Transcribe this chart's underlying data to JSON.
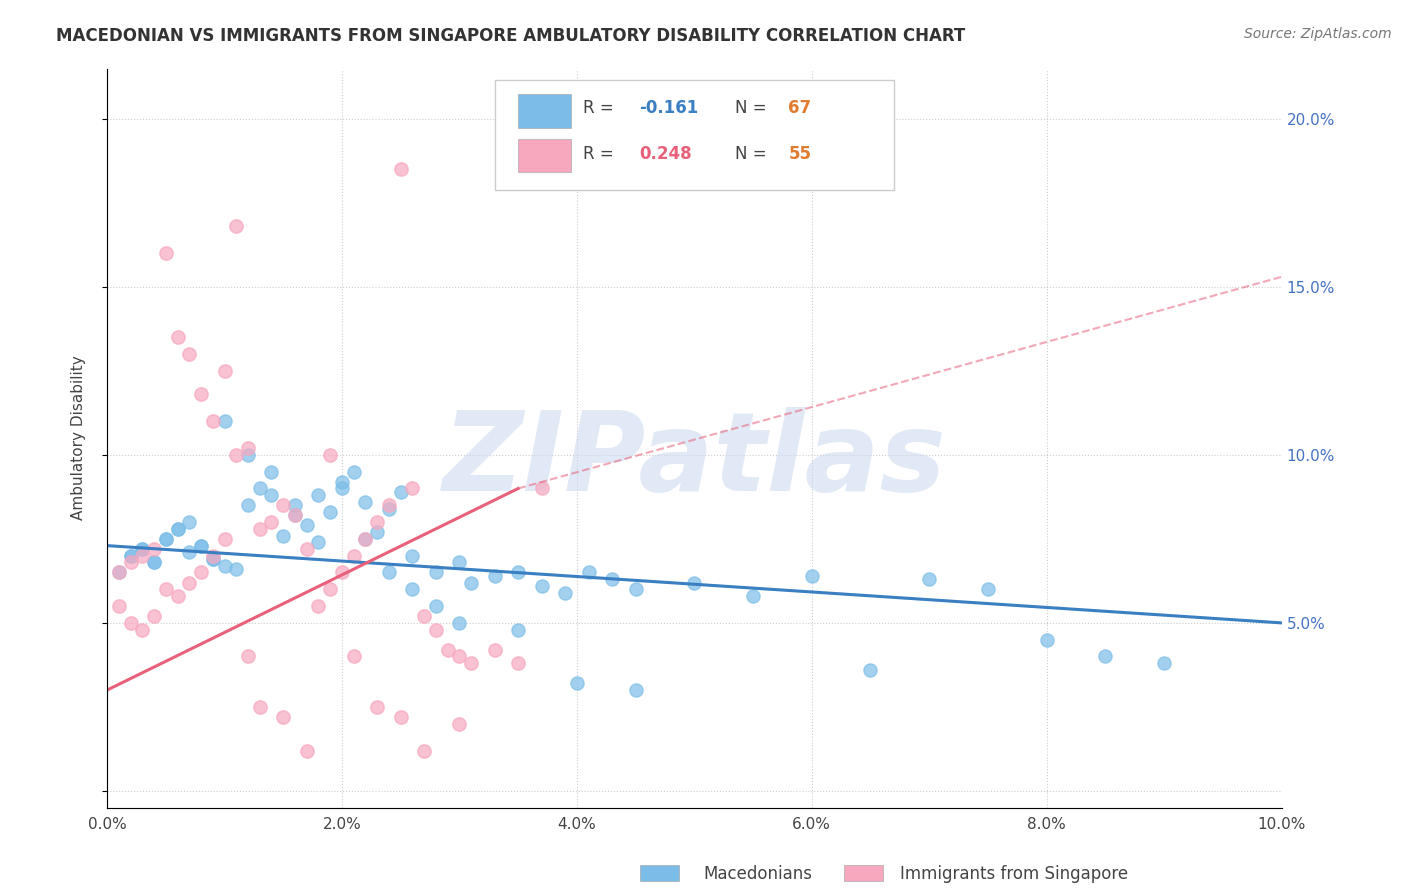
{
  "title": "MACEDONIAN VS IMMIGRANTS FROM SINGAPORE AMBULATORY DISABILITY CORRELATION CHART",
  "source": "Source: ZipAtlas.com",
  "ylabel": "Ambulatory Disability",
  "xlim": [
    0.0,
    0.1
  ],
  "ylim": [
    -0.005,
    0.215
  ],
  "xtick_vals": [
    0.0,
    0.02,
    0.04,
    0.06,
    0.08,
    0.1
  ],
  "ytick_vals": [
    0.0,
    0.05,
    0.1,
    0.15,
    0.2
  ],
  "ytick_labels": [
    "",
    "5.0%",
    "10.0%",
    "15.0%",
    "20.0%"
  ],
  "xtick_labels": [
    "0.0%",
    "2.0%",
    "4.0%",
    "6.0%",
    "8.0%",
    "10.0%"
  ],
  "mac_color": "#7bbde8",
  "sing_color": "#f7a8bf",
  "mac_line_color": "#3a7fc1",
  "sing_line_color": "#e8607a",
  "legend_label_mac": "Macedonians",
  "legend_label_sing": "Immigrants from Singapore",
  "watermark": "ZIPatlas",
  "R_mac": "-0.161",
  "N_mac": "67",
  "R_sing": "0.248",
  "N_sing": "55",
  "r_color": "#333333",
  "n_color_mac": "#3a7fc1",
  "n_color_sing": "#e8607a",
  "rv_color_mac": "#3a7fc1",
  "rv_color_sing": "#e8607a",
  "nv_color": "#e07b30",
  "mac_x": [
    0.002,
    0.003,
    0.004,
    0.005,
    0.006,
    0.007,
    0.008,
    0.009,
    0.01,
    0.011,
    0.012,
    0.013,
    0.014,
    0.015,
    0.016,
    0.017,
    0.018,
    0.019,
    0.02,
    0.021,
    0.022,
    0.023,
    0.024,
    0.025,
    0.026,
    0.028,
    0.03,
    0.031,
    0.033,
    0.035,
    0.037,
    0.039,
    0.041,
    0.043,
    0.045,
    0.05,
    0.055,
    0.06,
    0.065,
    0.07,
    0.075,
    0.08,
    0.085,
    0.09,
    0.001,
    0.002,
    0.003,
    0.004,
    0.005,
    0.006,
    0.007,
    0.008,
    0.009,
    0.01,
    0.012,
    0.014,
    0.016,
    0.018,
    0.02,
    0.022,
    0.024,
    0.026,
    0.028,
    0.03,
    0.035,
    0.04,
    0.045
  ],
  "mac_y": [
    0.07,
    0.072,
    0.068,
    0.075,
    0.078,
    0.08,
    0.073,
    0.069,
    0.067,
    0.066,
    0.085,
    0.09,
    0.088,
    0.076,
    0.082,
    0.079,
    0.074,
    0.083,
    0.092,
    0.095,
    0.086,
    0.077,
    0.084,
    0.089,
    0.07,
    0.065,
    0.068,
    0.062,
    0.064,
    0.065,
    0.061,
    0.059,
    0.065,
    0.063,
    0.06,
    0.062,
    0.058,
    0.064,
    0.036,
    0.063,
    0.06,
    0.045,
    0.04,
    0.038,
    0.065,
    0.07,
    0.072,
    0.068,
    0.075,
    0.078,
    0.071,
    0.073,
    0.069,
    0.11,
    0.1,
    0.095,
    0.085,
    0.088,
    0.09,
    0.075,
    0.065,
    0.06,
    0.055,
    0.05,
    0.048,
    0.032,
    0.03
  ],
  "sing_x": [
    0.001,
    0.002,
    0.003,
    0.004,
    0.005,
    0.006,
    0.007,
    0.008,
    0.009,
    0.01,
    0.011,
    0.012,
    0.013,
    0.014,
    0.015,
    0.016,
    0.017,
    0.018,
    0.019,
    0.02,
    0.021,
    0.022,
    0.023,
    0.024,
    0.025,
    0.026,
    0.027,
    0.028,
    0.029,
    0.03,
    0.031,
    0.033,
    0.035,
    0.037,
    0.001,
    0.002,
    0.003,
    0.004,
    0.005,
    0.006,
    0.007,
    0.008,
    0.009,
    0.01,
    0.011,
    0.012,
    0.013,
    0.015,
    0.017,
    0.019,
    0.021,
    0.023,
    0.025,
    0.027,
    0.03
  ],
  "sing_y": [
    0.055,
    0.05,
    0.048,
    0.052,
    0.06,
    0.058,
    0.062,
    0.065,
    0.07,
    0.075,
    0.1,
    0.102,
    0.078,
    0.08,
    0.085,
    0.082,
    0.072,
    0.055,
    0.06,
    0.065,
    0.07,
    0.075,
    0.08,
    0.085,
    0.185,
    0.09,
    0.052,
    0.048,
    0.042,
    0.04,
    0.038,
    0.042,
    0.038,
    0.09,
    0.065,
    0.068,
    0.07,
    0.072,
    0.16,
    0.135,
    0.13,
    0.118,
    0.11,
    0.125,
    0.168,
    0.04,
    0.025,
    0.022,
    0.012,
    0.1,
    0.04,
    0.025,
    0.022,
    0.012,
    0.02
  ]
}
